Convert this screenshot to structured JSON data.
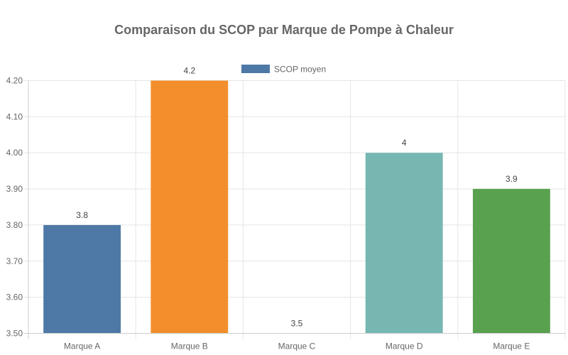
{
  "chart_data": {
    "type": "bar",
    "title": "Comparaison du SCOP par Marque de Pompe à Chaleur",
    "categories": [
      "Marque A",
      "Marque B",
      "Marque C",
      "Marque D",
      "Marque E"
    ],
    "series": [
      {
        "name": "SCOP moyen",
        "values": [
          3.8,
          4.2,
          3.5,
          4.0,
          3.9
        ],
        "colors": [
          "#4e79a7",
          "#f28e2b",
          "#e15759",
          "#76b7b2",
          "#59a14f"
        ]
      }
    ],
    "data_labels": [
      "3.8",
      "4.2",
      "3.5",
      "4",
      "3.9"
    ],
    "ylim": [
      3.5,
      4.2
    ],
    "yticks": [
      3.5,
      3.6,
      3.7,
      3.8,
      3.9,
      4.0,
      4.1,
      4.2
    ],
    "ytick_labels": [
      "3.50",
      "3.60",
      "3.70",
      "3.80",
      "3.90",
      "4.00",
      "4.10",
      "4.20"
    ],
    "xlabel": "",
    "ylabel": "",
    "legend_position": "top",
    "grid": true
  }
}
